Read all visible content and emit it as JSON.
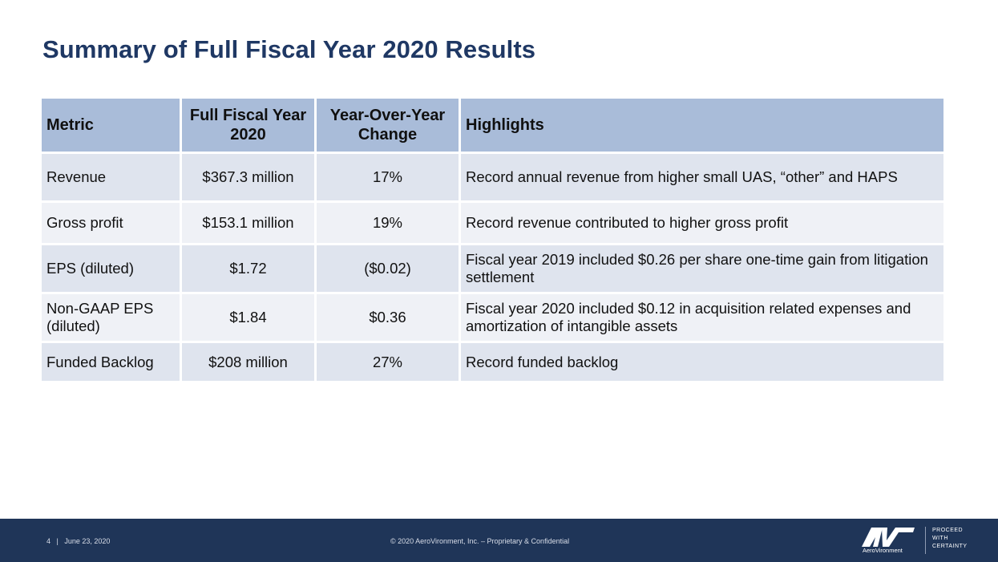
{
  "title": "Summary of Full Fiscal Year 2020 Results",
  "table": {
    "headers": [
      "Metric",
      "Full Fiscal Year 2020",
      "Year-Over-Year Change",
      "Highlights"
    ],
    "rows": [
      [
        "Revenue",
        "$367.3 million",
        "17%",
        "Record annual revenue from higher small UAS, “other” and HAPS"
      ],
      [
        "Gross profit",
        "$153.1 million",
        "19%",
        "Record revenue contributed to higher gross profit"
      ],
      [
        "EPS (diluted)",
        "$1.72",
        "($0.02)",
        "Fiscal year 2019 included $0.26 per share one-time gain from litigation settlement"
      ],
      [
        "Non-GAAP EPS (diluted)",
        "$1.84",
        "$0.36",
        "Fiscal year 2020 included $0.12 in acquisition related expenses and amortization of intangible assets"
      ],
      [
        "Funded Backlog",
        "$208 million",
        "27%",
        "Record funded backlog"
      ]
    ]
  },
  "footer": {
    "page_number": "4",
    "separator": "|",
    "date": "June 23, 2020",
    "copyright": "© 2020 AeroVironment, Inc. – Proprietary & Confidential",
    "logo_name": "AeroVironment",
    "tagline": [
      "PROCEED",
      "WITH",
      "CERTAINTY"
    ]
  },
  "colors": {
    "title": "#1f3864",
    "header_bg": "#a9bcd9",
    "row_odd_bg": "#dfe4ee",
    "row_even_bg": "#eff1f6",
    "footer_bg": "#1f3558"
  },
  "icons": {
    "logo": "aerovironment-av-logo"
  }
}
